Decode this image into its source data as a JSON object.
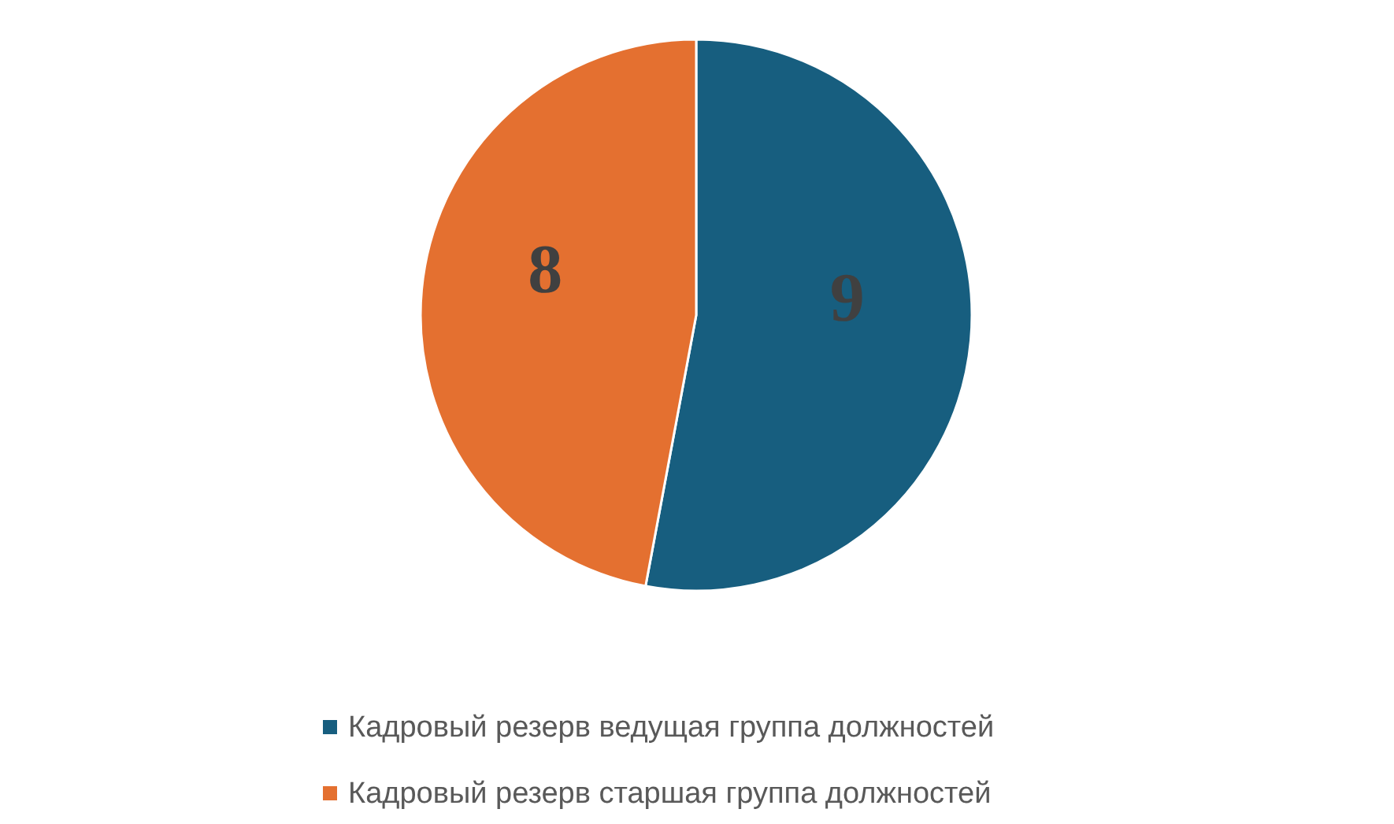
{
  "chart_data": {
    "type": "pie",
    "categories": [
      "Кадровый резерв ведущая группа должностей",
      "Кадровый резерв старшая группа должностей"
    ],
    "values": [
      9,
      8
    ],
    "colors": [
      "#175e7f",
      "#e47030"
    ],
    "data_labels": true,
    "legend": "bottom"
  }
}
